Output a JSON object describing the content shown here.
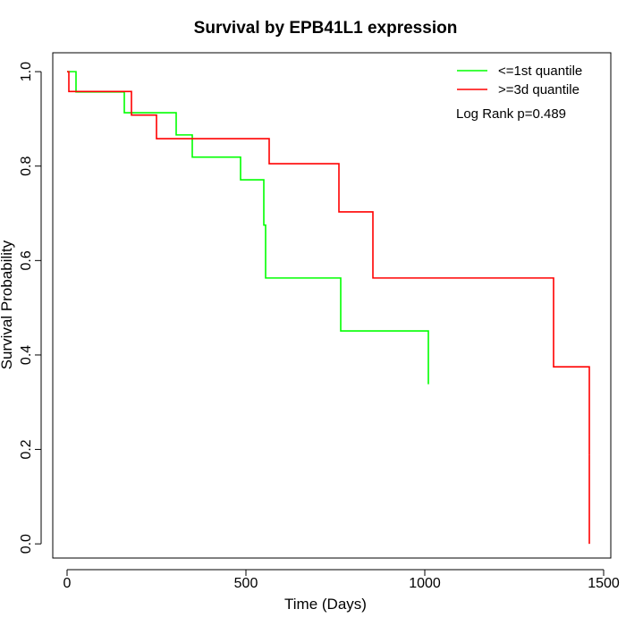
{
  "chart_data": {
    "type": "line",
    "title": "Survival by EPB41L1 expression",
    "xlabel": "Time (Days)",
    "ylabel": "Survival Probability",
    "xlim": [
      -40,
      1520
    ],
    "ylim": [
      -0.03,
      1.04
    ],
    "xticks": [
      0,
      500,
      1000,
      1500
    ],
    "xtick_labels": [
      "0",
      "500",
      "1000",
      "1500"
    ],
    "yticks": [
      0.0,
      0.2,
      0.4,
      0.6,
      0.8,
      1.0
    ],
    "ytick_labels": [
      "0.0",
      "0.2",
      "0.4",
      "0.6",
      "0.8",
      "1.0"
    ],
    "grid": false,
    "legend_position": "top-right",
    "annotation": "Log Rank p=0.489",
    "series": [
      {
        "name": "<=1st quantile",
        "color": "#00ff00",
        "step": true,
        "x": [
          0,
          25,
          155,
          160,
          285,
          305,
          350,
          485,
          550,
          555,
          765,
          1010
        ],
        "y": [
          1.0,
          0.957,
          0.957,
          0.913,
          0.913,
          0.866,
          0.819,
          0.771,
          0.675,
          0.563,
          0.451,
          0.338
        ]
      },
      {
        "name": ">=3d quantile",
        "color": "#ff0000",
        "step": true,
        "x": [
          0,
          5,
          145,
          180,
          250,
          565,
          760,
          855,
          1360,
          1460
        ],
        "y": [
          1.0,
          0.958,
          0.958,
          0.908,
          0.858,
          0.805,
          0.703,
          0.563,
          0.375,
          0.188
        ]
      }
    ],
    "end_drops": [
      {
        "series": ">=3d quantile",
        "x": 1460,
        "from": 0.188,
        "to": 0.0
      }
    ]
  }
}
